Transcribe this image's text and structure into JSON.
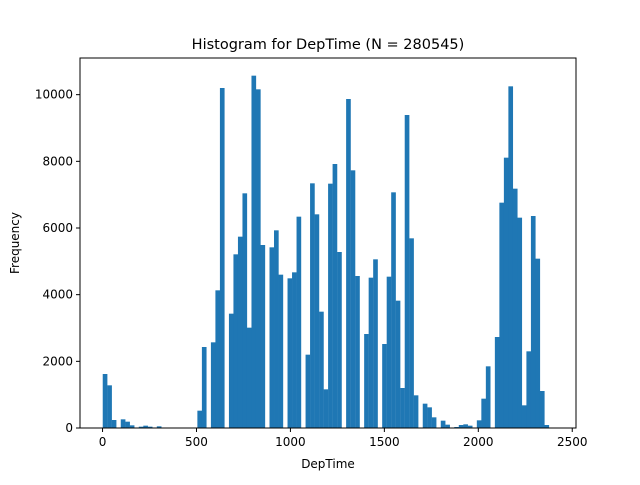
{
  "chart_data": {
    "type": "bar",
    "title": "Histogram for DepTime (N = 280545)",
    "xlabel": "DepTime",
    "ylabel": "Frequency",
    "xlim": [
      -120,
      2520
    ],
    "ylim": [
      0,
      11100
    ],
    "xticks": [
      0,
      500,
      1000,
      1500,
      2000,
      2500
    ],
    "xtick_labels": [
      "0",
      "500",
      "1000",
      "1500",
      "2000",
      "2500"
    ],
    "yticks": [
      0,
      2000,
      4000,
      6000,
      8000,
      10000
    ],
    "ytick_labels": [
      "0",
      "2000",
      "4000",
      "6000",
      "8000",
      "10000"
    ],
    "bar_color": "#1f77b4",
    "bin_start": 1,
    "bin_width": 23.99,
    "values": [
      1620,
      1280,
      240,
      0,
      260,
      190,
      80,
      0,
      40,
      70,
      40,
      0,
      50,
      0,
      0,
      0,
      0,
      0,
      0,
      0,
      0,
      520,
      2430,
      0,
      2570,
      4130,
      10200,
      0,
      3430,
      5210,
      5740,
      7040,
      3010,
      10570,
      10160,
      5490,
      0,
      5420,
      5930,
      4600,
      0,
      4490,
      4670,
      6340,
      0,
      2200,
      7340,
      6410,
      3490,
      1160,
      7330,
      7920,
      5280,
      0,
      9870,
      7730,
      4560,
      0,
      2820,
      4510,
      5060,
      0,
      2520,
      4540,
      7070,
      3820,
      1200,
      9390,
      5690,
      980,
      0,
      730,
      620,
      320,
      0,
      220,
      100,
      0,
      30,
      90,
      110,
      70,
      0,
      230,
      880,
      1850,
      0,
      2730,
      6760,
      8110,
      10250,
      7180,
      6310,
      680,
      2300,
      6360,
      5080,
      1110,
      90,
      0
    ]
  }
}
